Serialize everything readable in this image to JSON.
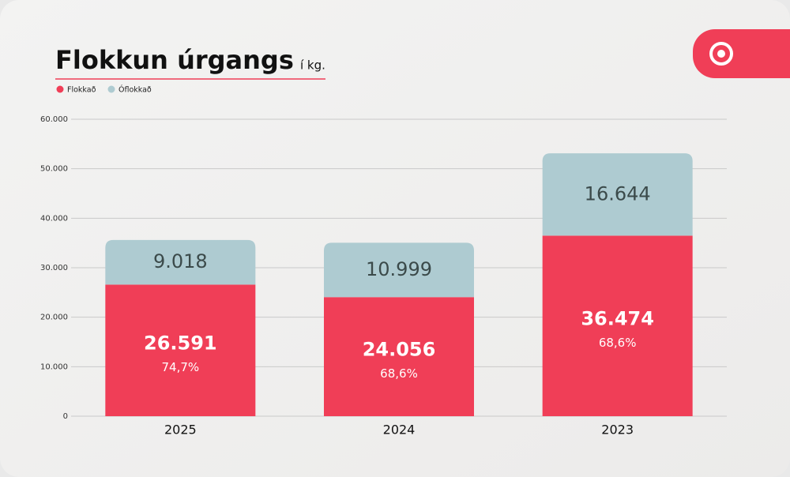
{
  "chart_data": {
    "type": "stacked_bar",
    "title": "Flokkun úrgangs",
    "subtitle": "í kg.",
    "categories": [
      "2025",
      "2024",
      "2023"
    ],
    "series": [
      {
        "name": "Flokkað",
        "color": "#f03e57",
        "values": [
          26591,
          24056,
          36474
        ],
        "value_labels": [
          "26.591",
          "24.056",
          "36.474"
        ],
        "share_labels": [
          "74,7%",
          "68,6%",
          "68,6%"
        ]
      },
      {
        "name": "Óflokkað",
        "color": "#aecbd1",
        "values": [
          9018,
          10999,
          16644
        ],
        "value_labels": [
          "9.018",
          "10.999",
          "16.644"
        ]
      }
    ],
    "ylim": [
      0,
      60000
    ],
    "yticks": [
      0,
      {
        "value": 10000,
        "label": "10.000"
      },
      {
        "value": 20000,
        "label": "20.000"
      },
      {
        "value": 30000,
        "label": "30.000"
      },
      {
        "value": 40000,
        "label": "40.000"
      },
      {
        "value": 50000,
        "label": "50.000"
      },
      {
        "value": 60000,
        "label": "60.000"
      }
    ],
    "grid": true,
    "legend": "top-left"
  }
}
